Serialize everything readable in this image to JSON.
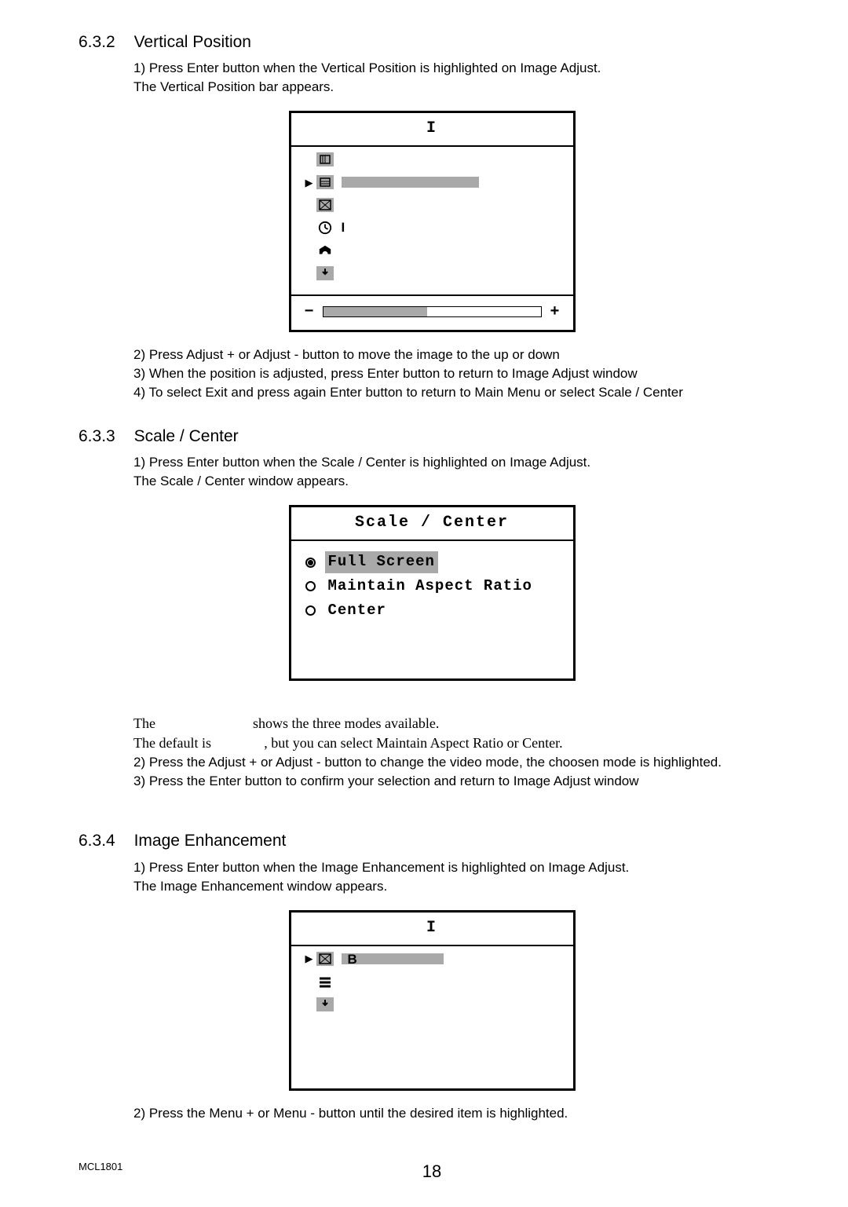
{
  "s632": {
    "heading_num": "6.3.2",
    "heading_title": "Vertical Position",
    "p1a": "1) Press ",
    "p1b": "Enter",
    "p1c": " button when the ",
    "p1d": "Vertical Position",
    "p1e": " is highlighted on ",
    "p1f": "Image Adjust.",
    "p2a": "The ",
    "p2b": "Vertical Position",
    "p2c": " bar appears.",
    "fig_title": "I",
    "fig_row2_text": "I",
    "slider_minus": "−",
    "slider_plus": "+",
    "slider_fill_pct": 48,
    "step2": "2) Press Adjust + or Adjust - button to move the image to the up or down",
    "step3": "3) When the position is adjusted, press Enter button to return to Image Adjust window",
    "step4": "4) To select Exit and press again Enter button to return to Main Menu or select Scale / Center"
  },
  "s633": {
    "heading_num": "6.3.3",
    "heading_title": "Scale / Center",
    "p1": "1) Press Enter button when the Scale / Center is highlighted on Image Adjust.",
    "p2": "The Scale / Center window appears.",
    "fig_title": "Scale / Center",
    "opt1": "Full Screen",
    "opt2": "Maintain Aspect Ratio",
    "opt3": "Center",
    "line1a": "The",
    "line1b": "shows the three modes available.",
    "line2a": " The default is ",
    "line2b": ", but you can select Maintain Aspect Ratio or Center.",
    "step2": "2) Press the Adjust + or Adjust - button to change the video mode, the choosen mode is highlighted.",
    "step3": "3) Press the Enter button to confirm your selection and return to Image Adjust window"
  },
  "s634": {
    "heading_num": "6.3.4",
    "heading_title": "Image Enhancement",
    "p1": "1) Press Enter button when the Image Enhancement is highlighted on Image Adjust.",
    "p2": "The Image Enhancement window appears.",
    "fig_title": "I",
    "fig_row_b": "B",
    "step2": "2) Press the Menu + or Menu - button until the desired item is highlighted."
  },
  "footer_model": "MCL1801",
  "page_number": "18",
  "colors": {
    "grey": "#a9a9a9"
  }
}
